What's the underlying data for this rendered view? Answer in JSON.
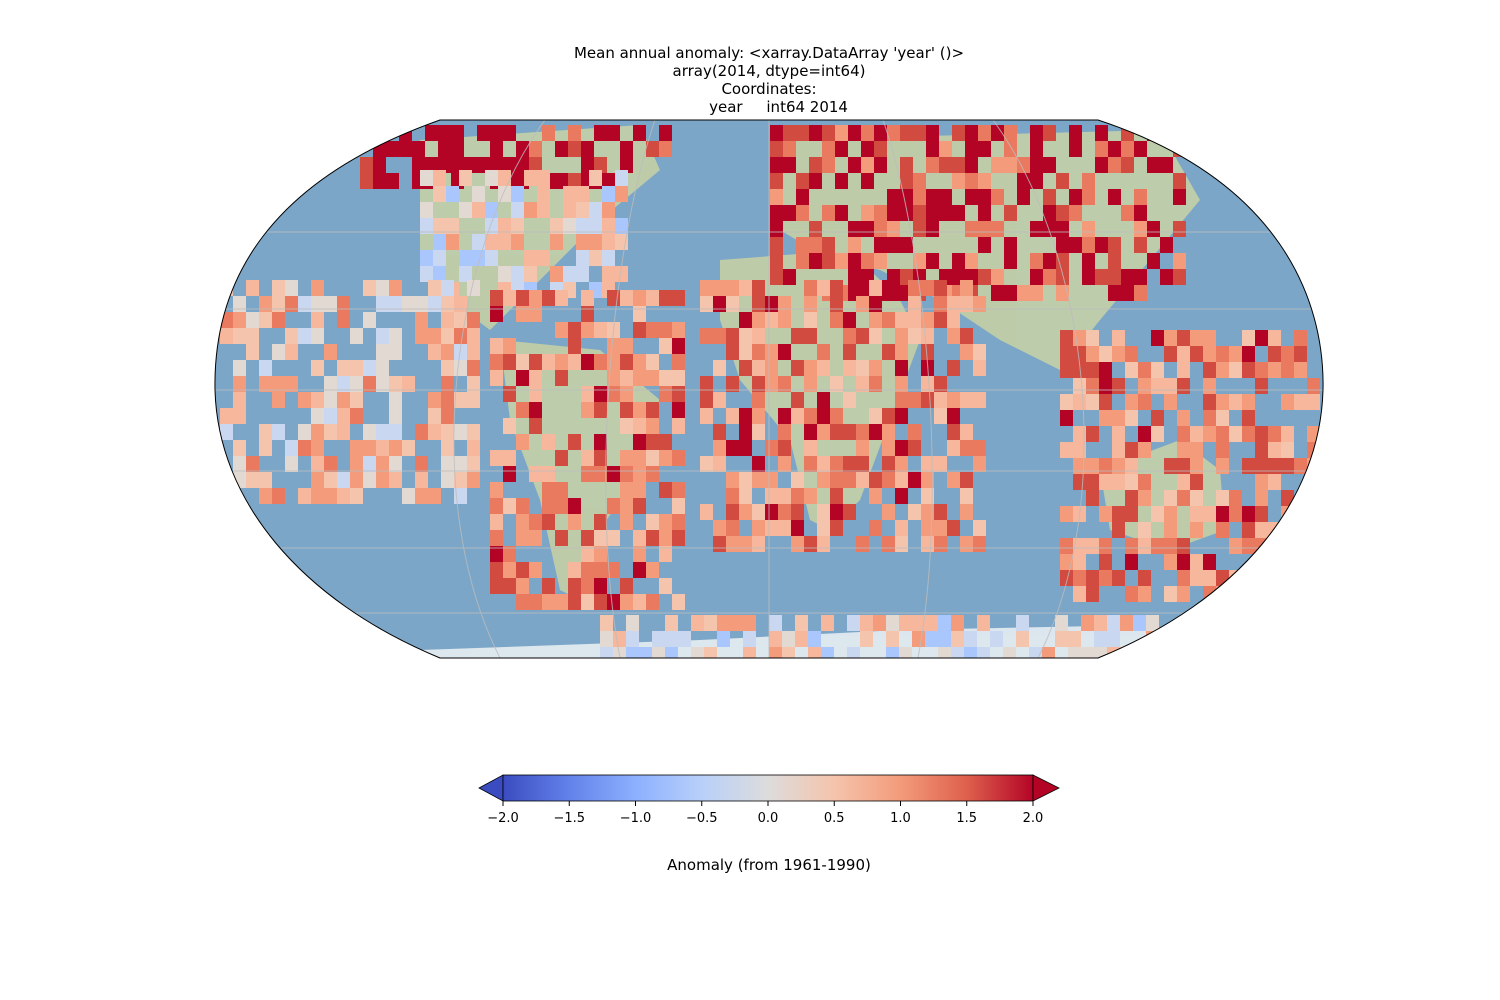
{
  "title": {
    "line1": "Mean annual anomaly: <xarray.DataArray 'year' ()>",
    "line2": "array(2014, dtype=int64)",
    "line3": "Coordinates:",
    "line4": "    year     int64 2014"
  },
  "map": {
    "projection": "Robinson",
    "ocean_color": "#7fa8c9",
    "gridlines": true,
    "coastlines": true
  },
  "colorbar": {
    "cmap": "coolwarm",
    "vmin": -2.0,
    "vmax": 2.0,
    "extend": "both",
    "ticks": [
      "−2.0",
      "−1.5",
      "−1.0",
      "−0.5",
      "0.0",
      "0.5",
      "1.0",
      "1.5",
      "2.0"
    ],
    "label": "Anomaly (from 1961-1990)"
  }
}
